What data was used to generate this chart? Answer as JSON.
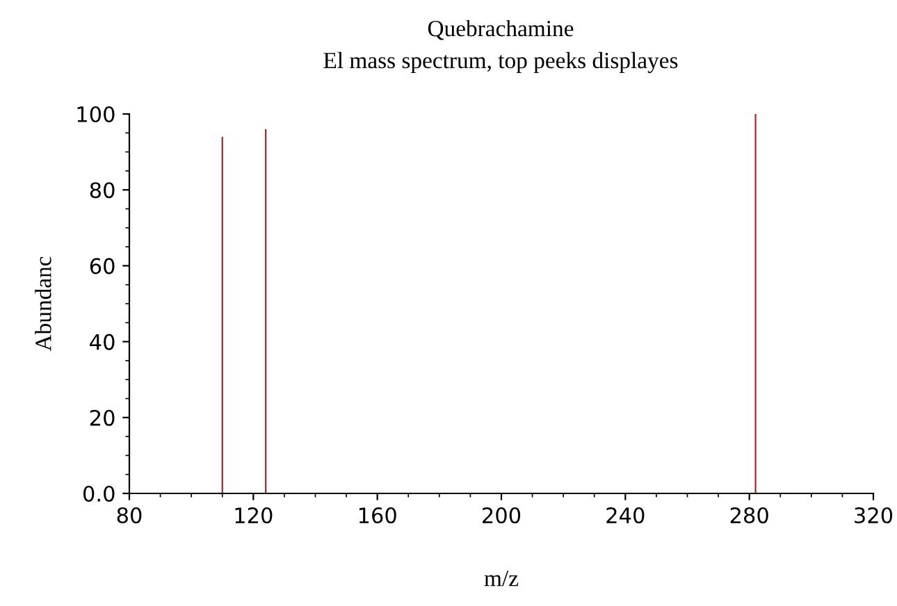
{
  "chart_data": {
    "type": "bar",
    "title": "Quebrachamine",
    "subtitle": "El mass spectrum, top peeks displayes",
    "xlabel": "m/z",
    "ylabel": "Abundanc",
    "x": [
      110,
      124,
      282
    ],
    "values": [
      94,
      96,
      100
    ],
    "color": "#a0282d",
    "xlim": [
      80,
      320
    ],
    "xticks": [
      80,
      120,
      160,
      200,
      240,
      280,
      320
    ],
    "ylim": [
      0,
      100
    ],
    "yticks": [
      {
        "value": 0,
        "label": "0.0"
      },
      20,
      40,
      60,
      80,
      100
    ],
    "grid": false
  }
}
